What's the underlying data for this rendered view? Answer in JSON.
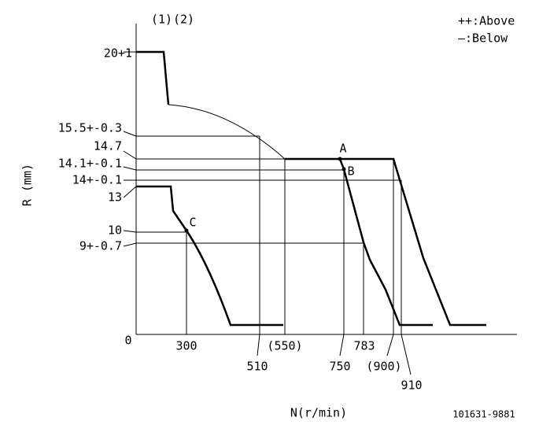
{
  "header": {
    "notes": [
      "(1)",
      "(2)"
    ],
    "legend": [
      "++:Above",
      "—:Below"
    ]
  },
  "axes": {
    "y_title": "R (mm)",
    "x_title": "N(r/min)",
    "origin": "0"
  },
  "y_labels": [
    "20+1",
    "15.5+-0.3",
    "14.7",
    "14.1+-0.1",
    "14+-0.1",
    "13",
    "10",
    "9+-0.7"
  ],
  "x_labels": [
    "300",
    "510",
    "(550)",
    "750",
    "783",
    "(900)",
    "910"
  ],
  "points": [
    "A",
    "B",
    "C"
  ],
  "footer": {
    "code": "101631-9881"
  }
}
